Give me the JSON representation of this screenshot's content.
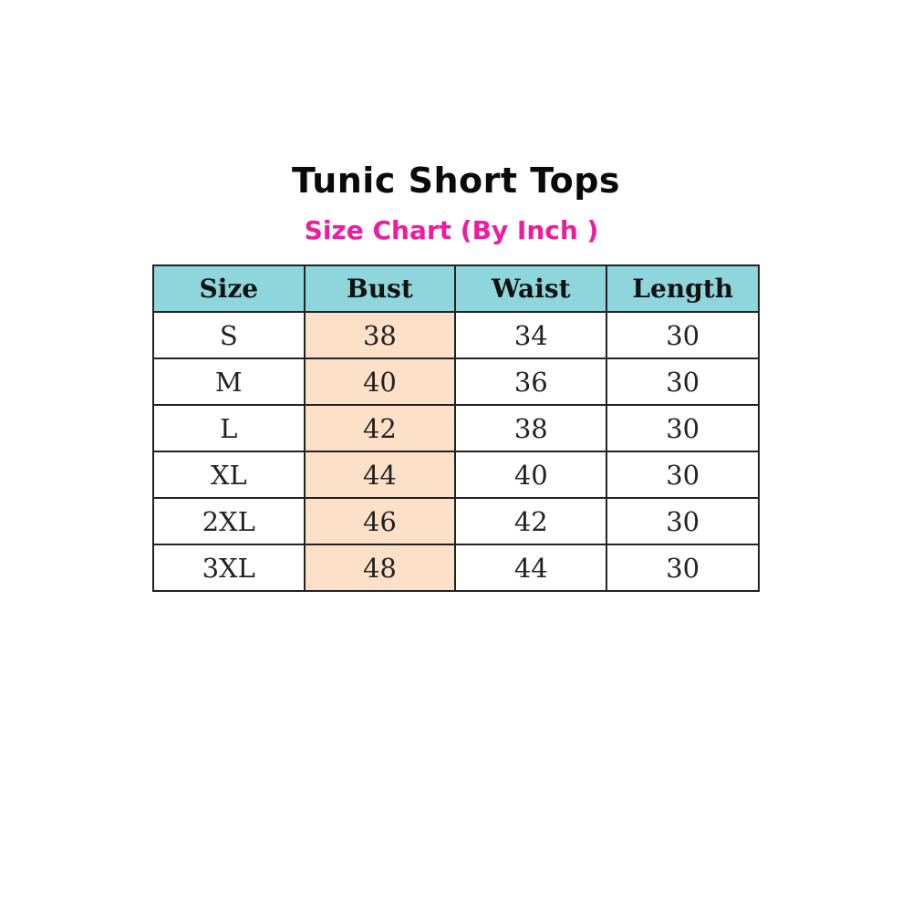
{
  "title": "Tunic Short Tops",
  "subtitle": "Size Chart (By Inch )",
  "colors": {
    "header_bg": "#8fd6dc",
    "bust_bg": "#fde0c8",
    "subtitle": "#ee1ca0"
  },
  "table": {
    "headers": [
      "Size",
      "Bust",
      "Waist",
      "Length"
    ],
    "rows": [
      [
        "S",
        "38",
        "34",
        "30"
      ],
      [
        "M",
        "40",
        "36",
        "30"
      ],
      [
        "L",
        "42",
        "38",
        "30"
      ],
      [
        "XL",
        "44",
        "40",
        "30"
      ],
      [
        "2XL",
        "46",
        "42",
        "30"
      ],
      [
        "3XL",
        "48",
        "44",
        "30"
      ]
    ]
  }
}
